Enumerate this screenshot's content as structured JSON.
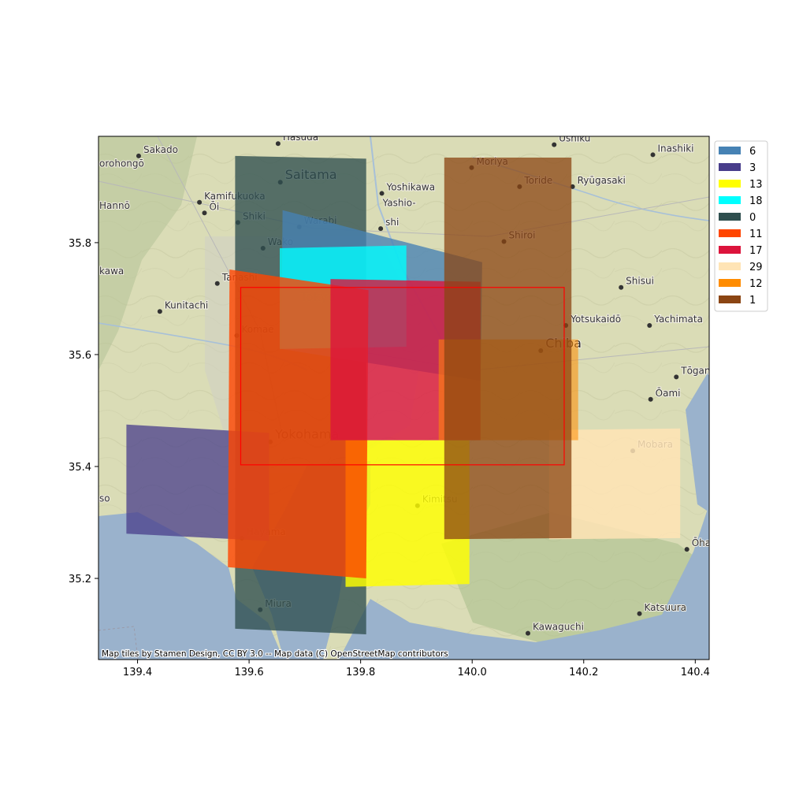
{
  "chart_data": {
    "type": "map",
    "xlim": [
      139.33,
      140.425
    ],
    "ylim": [
      35.055,
      35.99
    ],
    "x_ticks": [
      139.4,
      139.6,
      139.8,
      140.0,
      140.2,
      140.4
    ],
    "x_tick_labels": [
      "139.4",
      "139.6",
      "139.8",
      "140.0",
      "140.2",
      "140.4"
    ],
    "y_ticks": [
      35.2,
      35.4,
      35.6,
      35.8
    ],
    "y_tick_labels": [
      "35.2",
      "35.4",
      "35.6",
      "35.8"
    ],
    "attribution": "Map tiles by Stamen Design, CC BY 3.0 -- Map data (C) OpenStreetMap contributors",
    "bbox_outline": {
      "color": "#ff0000",
      "lon": [
        139.585,
        140.165
      ],
      "lat": [
        35.403,
        35.72
      ]
    },
    "footprints": [
      {
        "label": "0",
        "color": "#2f4f4f",
        "opacity": 0.78,
        "corners": [
          [
            139.575,
            35.955
          ],
          [
            139.81,
            35.95
          ],
          [
            139.81,
            35.1
          ],
          [
            139.575,
            35.11
          ]
        ]
      },
      {
        "label": "6",
        "color": "#4682b4",
        "opacity": 0.78,
        "corners": [
          [
            139.66,
            35.858
          ],
          [
            140.018,
            35.765
          ],
          [
            140.015,
            35.553
          ],
          [
            139.658,
            35.61
          ]
        ]
      },
      {
        "label": "18",
        "color": "#00ffff",
        "opacity": 0.78,
        "corners": [
          [
            139.655,
            35.79
          ],
          [
            139.882,
            35.795
          ],
          [
            139.882,
            35.614
          ],
          [
            139.655,
            35.61
          ]
        ]
      },
      {
        "label": "3",
        "color": "#483d8b",
        "opacity": 0.75,
        "corners": [
          [
            139.38,
            35.475
          ],
          [
            139.636,
            35.46
          ],
          [
            139.636,
            35.267
          ],
          [
            139.38,
            35.28
          ]
        ]
      },
      {
        "label": "13",
        "color": "#ffff00",
        "opacity": 0.82,
        "corners": [
          [
            139.773,
            35.447
          ],
          [
            139.995,
            35.447
          ],
          [
            139.995,
            35.19
          ],
          [
            139.773,
            35.185
          ]
        ]
      },
      {
        "label": "29",
        "color": "#ffe4b5",
        "opacity": 0.85,
        "corners": [
          [
            140.138,
            35.465
          ],
          [
            140.373,
            35.468
          ],
          [
            140.373,
            35.272
          ],
          [
            140.138,
            35.27
          ]
        ]
      },
      {
        "label": "11",
        "color": "#ff4500",
        "opacity": 0.8,
        "corners": [
          [
            139.565,
            35.752
          ],
          [
            139.814,
            35.715
          ],
          [
            139.81,
            35.2
          ],
          [
            139.562,
            35.22
          ]
        ]
      },
      {
        "label": "17",
        "color": "#dc143c",
        "opacity": 0.8,
        "corners": [
          [
            139.746,
            35.735
          ],
          [
            140.015,
            35.73
          ],
          [
            140.015,
            35.447
          ],
          [
            139.746,
            35.447
          ]
        ]
      },
      {
        "label": "12",
        "color": "#ff8c00",
        "opacity": 0.55,
        "corners": [
          [
            139.94,
            35.627
          ],
          [
            140.19,
            35.627
          ],
          [
            140.19,
            35.447
          ],
          [
            139.94,
            35.447
          ]
        ]
      },
      {
        "label": "1",
        "color": "#8b4513",
        "opacity": 0.75,
        "corners": [
          [
            139.95,
            35.952
          ],
          [
            140.178,
            35.952
          ],
          [
            140.178,
            35.272
          ],
          [
            139.95,
            35.27
          ]
        ]
      }
    ],
    "legend": [
      {
        "label": "6",
        "color": "#4682b4"
      },
      {
        "label": "3",
        "color": "#483d8b"
      },
      {
        "label": "13",
        "color": "#ffff00"
      },
      {
        "label": "18",
        "color": "#00ffff"
      },
      {
        "label": "0",
        "color": "#2f4f4f"
      },
      {
        "label": "11",
        "color": "#ff4500"
      },
      {
        "label": "17",
        "color": "#dc143c"
      },
      {
        "label": "29",
        "color": "#ffe4b5"
      },
      {
        "label": "12",
        "color": "#ff8c00"
      },
      {
        "label": "1",
        "color": "#8b4513"
      }
    ],
    "places": [
      {
        "name": "Sakado",
        "lon": 139.402,
        "lat": 35.955,
        "dot": true,
        "big": false
      },
      {
        "name": "Hasuda",
        "lon": 139.652,
        "lat": 35.977,
        "dot": true,
        "big": false
      },
      {
        "name": "Ushiku",
        "lon": 140.147,
        "lat": 35.975,
        "dot": true,
        "big": false
      },
      {
        "name": "Inashiki",
        "lon": 140.324,
        "lat": 35.957,
        "dot": true,
        "big": false
      },
      {
        "name": "orohongō",
        "lon": 139.33,
        "lat": 35.93,
        "dot": false,
        "big": false
      },
      {
        "name": "Saitama",
        "lon": 139.656,
        "lat": 35.908,
        "dot": true,
        "big": true
      },
      {
        "name": "Moriya",
        "lon": 139.999,
        "lat": 35.934,
        "dot": true,
        "big": false
      },
      {
        "name": "Toride",
        "lon": 140.085,
        "lat": 35.9,
        "dot": true,
        "big": false
      },
      {
        "name": "Ryūgasaki",
        "lon": 140.18,
        "lat": 35.9,
        "dot": true,
        "big": false
      },
      {
        "name": "Kamifukuoka",
        "lon": 139.511,
        "lat": 35.872,
        "dot": true,
        "big": false
      },
      {
        "name": "Ōi",
        "lon": 139.52,
        "lat": 35.853,
        "dot": true,
        "big": false
      },
      {
        "name": "Hannō",
        "lon": 139.33,
        "lat": 35.855,
        "dot": false,
        "big": false
      },
      {
        "name": "Yoshikawa",
        "lon": 139.838,
        "lat": 35.888,
        "dot": true,
        "big": false
      },
      {
        "name": "Yashio-",
        "lon": 139.838,
        "lat": 35.86,
        "dot": false,
        "big": false
      },
      {
        "name": "shi",
        "lon": 139.836,
        "lat": 35.825,
        "dot": true,
        "big": false
      },
      {
        "name": "Shiki",
        "lon": 139.58,
        "lat": 35.836,
        "dot": true,
        "big": false
      },
      {
        "name": "Warabi",
        "lon": 139.69,
        "lat": 35.828,
        "dot": true,
        "big": false
      },
      {
        "name": "Shiroi",
        "lon": 140.057,
        "lat": 35.802,
        "dot": true,
        "big": false
      },
      {
        "name": "Wako",
        "lon": 139.625,
        "lat": 35.79,
        "dot": true,
        "big": false
      },
      {
        "name": "kawa",
        "lon": 139.33,
        "lat": 35.738,
        "dot": false,
        "big": false
      },
      {
        "name": "Tanashi",
        "lon": 139.543,
        "lat": 35.727,
        "dot": true,
        "big": false
      },
      {
        "name": "Shisui",
        "lon": 140.267,
        "lat": 35.72,
        "dot": true,
        "big": false
      },
      {
        "name": "Kunitachi",
        "lon": 139.44,
        "lat": 35.677,
        "dot": true,
        "big": false
      },
      {
        "name": "Yotsukaidō",
        "lon": 140.168,
        "lat": 35.652,
        "dot": true,
        "big": false
      },
      {
        "name": "Yachimata",
        "lon": 140.318,
        "lat": 35.652,
        "dot": true,
        "big": false
      },
      {
        "name": "Komae",
        "lon": 139.578,
        "lat": 35.634,
        "dot": true,
        "big": false
      },
      {
        "name": "Tokyo",
        "lon": 139.69,
        "lat": 35.69,
        "dot": false,
        "big": true
      },
      {
        "name": "Chiba",
        "lon": 140.123,
        "lat": 35.607,
        "dot": true,
        "big": true
      },
      {
        "name": "Tōgane",
        "lon": 140.366,
        "lat": 35.56,
        "dot": true,
        "big": false
      },
      {
        "name": "Ōami",
        "lon": 140.32,
        "lat": 35.52,
        "dot": true,
        "big": false
      },
      {
        "name": "Yokohama",
        "lon": 139.638,
        "lat": 35.444,
        "dot": true,
        "big": true
      },
      {
        "name": "Mobara",
        "lon": 140.288,
        "lat": 35.428,
        "dot": true,
        "big": false
      },
      {
        "name": "Kimitsu",
        "lon": 139.902,
        "lat": 35.33,
        "dot": true,
        "big": false
      },
      {
        "name": "so",
        "lon": 139.33,
        "lat": 35.332,
        "dot": false,
        "big": false
      },
      {
        "name": "Hayama",
        "lon": 139.587,
        "lat": 35.272,
        "dot": true,
        "big": false
      },
      {
        "name": "Ōhara",
        "lon": 140.385,
        "lat": 35.252,
        "dot": true,
        "big": false
      },
      {
        "name": "Miura",
        "lon": 139.62,
        "lat": 35.144,
        "dot": true,
        "big": false
      },
      {
        "name": "Kawaguchi",
        "lon": 140.1,
        "lat": 35.102,
        "dot": true,
        "big": false
      },
      {
        "name": "Katsuura",
        "lon": 140.3,
        "lat": 35.137,
        "dot": true,
        "big": false
      }
    ]
  }
}
